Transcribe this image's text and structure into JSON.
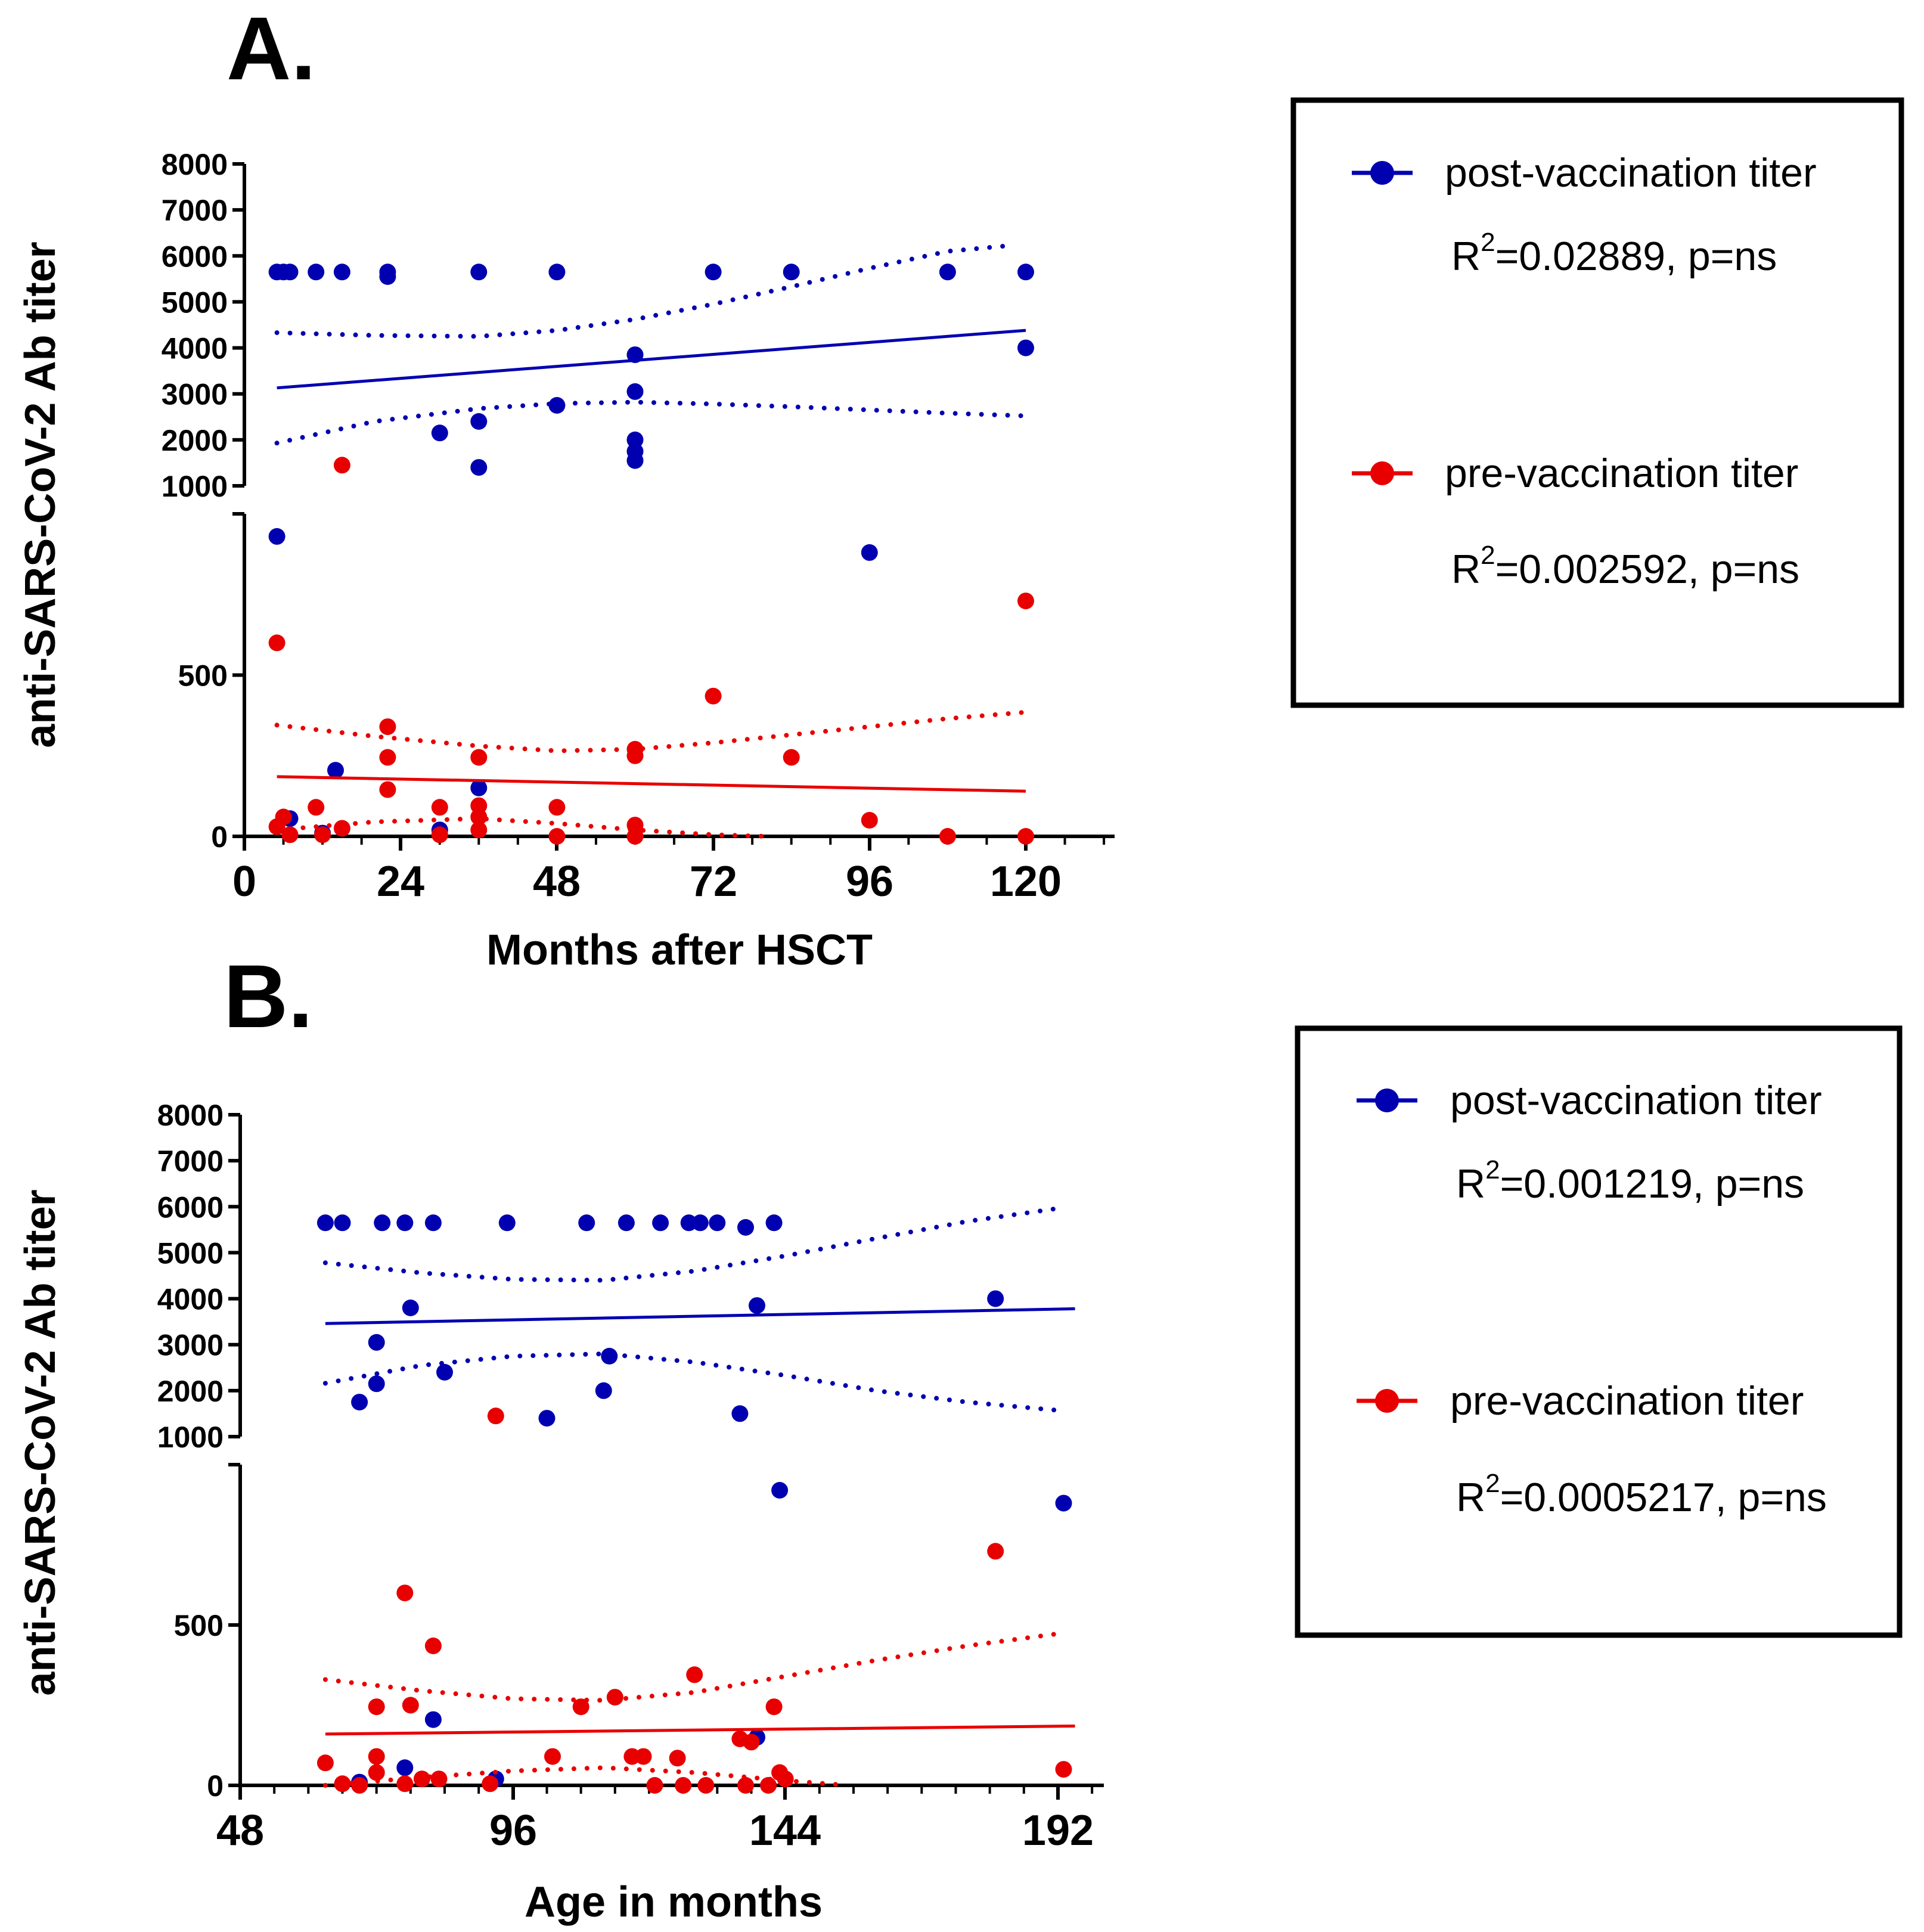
{
  "chart_data": [
    {
      "type": "scatter",
      "panel_label": "A.",
      "xlabel": "Months after HSCT",
      "ylabel": "anti-SARS-CoV-2 Ab titer",
      "xlim": [
        0,
        132
      ],
      "xticks": [
        "0",
        "24",
        "48",
        "72",
        "96",
        "120"
      ],
      "y_upper_range": [
        1000,
        8000
      ],
      "y_upper_ticks": [
        "1000",
        "2000",
        "3000",
        "4000",
        "5000",
        "6000",
        "7000",
        "8000"
      ],
      "y_lower_range": [
        0,
        1000
      ],
      "y_lower_ticks": [
        "0",
        "500"
      ],
      "axis_break": true,
      "series": [
        {
          "name": "post-vaccination titer",
          "color": "#0000b0",
          "stats": "R²=0.02889, p=ns",
          "stats_base": "R",
          "stats_sup": "2",
          "stats_rest": "=0.02889, p=ns",
          "points": [
            [
              5,
              5650
            ],
            [
              6,
              5650
            ],
            [
              7,
              5650
            ],
            [
              11,
              5650
            ],
            [
              15,
              5650
            ],
            [
              22,
              5650
            ],
            [
              22,
              5550
            ],
            [
              36,
              5650
            ],
            [
              48,
              5650
            ],
            [
              72,
              5650
            ],
            [
              84,
              5650
            ],
            [
              108,
              5650
            ],
            [
              120,
              5650
            ],
            [
              60,
              3850
            ],
            [
              120,
              4000
            ],
            [
              60,
              3050
            ],
            [
              48,
              2750
            ],
            [
              30,
              2150
            ],
            [
              36,
              2400
            ],
            [
              60,
              2000
            ],
            [
              60,
              1750
            ],
            [
              60,
              1550
            ],
            [
              36,
              1400
            ],
            [
              5,
              930
            ],
            [
              96,
              880
            ],
            [
              14,
              205
            ],
            [
              36,
              150
            ],
            [
              7,
              55
            ],
            [
              12,
              10
            ],
            [
              30,
              20
            ]
          ],
          "fit_line": [
            [
              5,
              3130
            ],
            [
              120,
              4380
            ]
          ],
          "ci_upper": [
            [
              5,
              4330
            ],
            [
              20,
              4270
            ],
            [
              36,
              4250
            ],
            [
              48,
              4380
            ],
            [
              60,
              4620
            ],
            [
              72,
              4950
            ],
            [
              84,
              5330
            ],
            [
              96,
              5730
            ],
            [
              108,
              6100
            ],
            [
              118,
              6230
            ]
          ],
          "ci_lower": [
            [
              5,
              1930
            ],
            [
              20,
              2400
            ],
            [
              36,
              2680
            ],
            [
              48,
              2790
            ],
            [
              60,
              2820
            ],
            [
              72,
              2780
            ],
            [
              84,
              2720
            ],
            [
              96,
              2650
            ],
            [
              108,
              2580
            ],
            [
              120,
              2520
            ]
          ]
        },
        {
          "name": "pre-vaccination titer",
          "color": "#e80000",
          "stats": "R²=0.002592, p=ns",
          "stats_base": "R",
          "stats_sup": "2",
          "stats_rest": "=0.002592, p=ns",
          "points": [
            [
              15,
              1450
            ],
            [
              120,
              730
            ],
            [
              5,
              600
            ],
            [
              72,
              435
            ],
            [
              22,
              340
            ],
            [
              60,
              270
            ],
            [
              22,
              245
            ],
            [
              36,
              245
            ],
            [
              60,
              250
            ],
            [
              84,
              245
            ],
            [
              22,
              145
            ],
            [
              30,
              90
            ],
            [
              36,
              95
            ],
            [
              48,
              90
            ],
            [
              11,
              90
            ],
            [
              36,
              60
            ],
            [
              96,
              50
            ],
            [
              6,
              60
            ],
            [
              60,
              35
            ],
            [
              5,
              30
            ],
            [
              15,
              25
            ],
            [
              36,
              20
            ],
            [
              7,
              5
            ],
            [
              12,
              5
            ],
            [
              30,
              5
            ],
            [
              48,
              0
            ],
            [
              60,
              0
            ],
            [
              108,
              0
            ],
            [
              120,
              0
            ]
          ],
          "fit_line": [
            [
              5,
              185
            ],
            [
              120,
              140
            ]
          ],
          "ci_upper": [
            [
              5,
              345
            ],
            [
              20,
              310
            ],
            [
              36,
              280
            ],
            [
              48,
              265
            ],
            [
              60,
              270
            ],
            [
              72,
              290
            ],
            [
              84,
              315
            ],
            [
              96,
              340
            ],
            [
              108,
              365
            ],
            [
              120,
              385
            ]
          ],
          "ci_lower": [
            [
              5,
              20
            ],
            [
              20,
              45
            ],
            [
              36,
              55
            ],
            [
              48,
              40
            ],
            [
              60,
              20
            ],
            [
              72,
              5
            ],
            [
              80,
              0
            ]
          ]
        }
      ]
    },
    {
      "type": "scatter",
      "panel_label": "B.",
      "xlabel": "Age in months",
      "ylabel": "anti-SARS-CoV-2 Ab titer",
      "xlim": [
        48,
        198
      ],
      "xticks": [
        "48",
        "96",
        "144",
        "192"
      ],
      "y_upper_range": [
        1000,
        8000
      ],
      "y_upper_ticks": [
        "1000",
        "2000",
        "3000",
        "4000",
        "5000",
        "6000",
        "7000",
        "8000"
      ],
      "y_lower_range": [
        0,
        1000
      ],
      "y_lower_ticks": [
        "0",
        "500"
      ],
      "axis_break": true,
      "series": [
        {
          "name": "post-vaccination titer",
          "color": "#0000b0",
          "stats": "R²=0.001219, p=ns",
          "stats_base": "R",
          "stats_sup": "2",
          "stats_rest": "=0.001219, p=ns",
          "points": [
            [
              63,
              5650
            ],
            [
              66,
              5650
            ],
            [
              73,
              5650
            ],
            [
              77,
              5650
            ],
            [
              82,
              5650
            ],
            [
              95,
              5650
            ],
            [
              109,
              5650
            ],
            [
              116,
              5650
            ],
            [
              122,
              5650
            ],
            [
              127,
              5650
            ],
            [
              129,
              5650
            ],
            [
              132,
              5650
            ],
            [
              137,
              5550
            ],
            [
              142,
              5650
            ],
            [
              78,
              3800
            ],
            [
              139,
              3850
            ],
            [
              181,
              4000
            ],
            [
              72,
              3050
            ],
            [
              113,
              2750
            ],
            [
              84,
              2400
            ],
            [
              72,
              2150
            ],
            [
              112,
              2000
            ],
            [
              69,
              1750
            ],
            [
              136,
              1500
            ],
            [
              102,
              1400
            ],
            [
              143,
              920
            ],
            [
              193,
              880
            ],
            [
              82,
              205
            ],
            [
              139,
              150
            ],
            [
              77,
              55
            ],
            [
              93,
              20
            ],
            [
              69,
              10
            ]
          ],
          "fit_line": [
            [
              63,
              3460
            ],
            [
              195,
              3780
            ]
          ],
          "ci_upper": [
            [
              63,
              4780
            ],
            [
              80,
              4560
            ],
            [
              96,
              4420
            ],
            [
              112,
              4400
            ],
            [
              128,
              4600
            ],
            [
              144,
              4930
            ],
            [
              160,
              5310
            ],
            [
              176,
              5680
            ],
            [
              193,
              5980
            ]
          ],
          "ci_lower": [
            [
              63,
              2160
            ],
            [
              80,
              2550
            ],
            [
              96,
              2750
            ],
            [
              112,
              2800
            ],
            [
              128,
              2620
            ],
            [
              144,
              2330
            ],
            [
              160,
              2000
            ],
            [
              176,
              1750
            ],
            [
              193,
              1560
            ]
          ]
        },
        {
          "name": "pre-vaccination titer",
          "color": "#e80000",
          "stats": "R²=0.0005217, p=ns",
          "stats_base": "R",
          "stats_sup": "2",
          "stats_rest": "=0.0005217, p=ns",
          "points": [
            [
              93,
              1450
            ],
            [
              181,
              730
            ],
            [
              77,
              600
            ],
            [
              82,
              435
            ],
            [
              128,
              345
            ],
            [
              114,
              275
            ],
            [
              78,
              250
            ],
            [
              72,
              245
            ],
            [
              108,
              245
            ],
            [
              142,
              245
            ],
            [
              136,
              145
            ],
            [
              138,
              135
            ],
            [
              72,
              90
            ],
            [
              103,
              90
            ],
            [
              117,
              90
            ],
            [
              119,
              90
            ],
            [
              125,
              85
            ],
            [
              63,
              70
            ],
            [
              72,
              40
            ],
            [
              143,
              40
            ],
            [
              144,
              20
            ],
            [
              80,
              20
            ],
            [
              83,
              20
            ],
            [
              193,
              50
            ],
            [
              66,
              5
            ],
            [
              69,
              0
            ],
            [
              77,
              5
            ],
            [
              92,
              5
            ],
            [
              121,
              0
            ],
            [
              126,
              0
            ],
            [
              130,
              0
            ],
            [
              137,
              0
            ],
            [
              141,
              0
            ]
          ],
          "fit_line": [
            [
              63,
              160
            ],
            [
              195,
              185
            ]
          ],
          "ci_upper": [
            [
              63,
              330
            ],
            [
              80,
              295
            ],
            [
              96,
              270
            ],
            [
              112,
              265
            ],
            [
              128,
              290
            ],
            [
              144,
              340
            ],
            [
              160,
              390
            ],
            [
              176,
              435
            ],
            [
              193,
              475
            ]
          ],
          "ci_lower": [
            [
              63,
              0
            ],
            [
              80,
              25
            ],
            [
              96,
              45
            ],
            [
              112,
              55
            ],
            [
              128,
              40
            ],
            [
              144,
              15
            ],
            [
              155,
              0
            ]
          ]
        }
      ]
    }
  ]
}
